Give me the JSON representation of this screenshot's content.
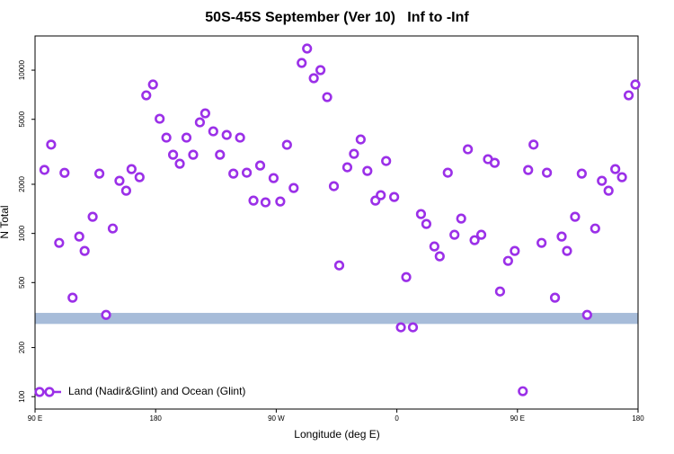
{
  "chart_data": {
    "type": "scatter",
    "title": "50S-45S September (Ver 10)   Inf to -Inf",
    "x_label": "Longitude (deg E)",
    "y_label": "N Total",
    "log_y": true,
    "xlim": [
      90,
      540
    ],
    "ylim": [
      84,
      16200
    ],
    "xticks": [
      {
        "value": 90,
        "label": "90 E"
      },
      {
        "value": 180,
        "label": "180"
      },
      {
        "value": 270,
        "label": "90 W"
      },
      {
        "value": 360,
        "label": "0"
      },
      {
        "value": 450,
        "label": "90 E"
      },
      {
        "value": 540,
        "label": "180"
      }
    ],
    "yticks": [
      100,
      200,
      500,
      1000,
      2000,
      5000,
      10000
    ],
    "band": [
      279,
      326
    ],
    "band_color": "#a7bcd9",
    "legend": "bottom-left",
    "series": [
      {
        "name": "Land (Nadir&Glint) and Ocean (Glint)",
        "color": "#9b30e8",
        "x": [
          97,
          102,
          108,
          112,
          118,
          123,
          127,
          133,
          138,
          143,
          148,
          153,
          158,
          162,
          168,
          173,
          178,
          183,
          188,
          193,
          198,
          203,
          208,
          213,
          217,
          223,
          228,
          233,
          238,
          243,
          248,
          253,
          258,
          262,
          268,
          273,
          278,
          283,
          289,
          293,
          298,
          303,
          308,
          313,
          317,
          323,
          328,
          333,
          338,
          344,
          348,
          352,
          358,
          363,
          367,
          372,
          378,
          382,
          388,
          392,
          398,
          403,
          408,
          413,
          418,
          423,
          428,
          433,
          437,
          443,
          448,
          454,
          458,
          462,
          468,
          472,
          478,
          483,
          487,
          493,
          498,
          502,
          508,
          513,
          518,
          523,
          528,
          533,
          538
        ],
        "values": [
          2450,
          3500,
          875,
          2350,
          404,
          957,
          781,
          1265,
          2325,
          317,
          1072,
          2100,
          1827,
          2477,
          2210,
          7012,
          8165,
          5040,
          3862,
          3034,
          2673,
          3862,
          3034,
          4792,
          5440,
          4221,
          3034,
          4012,
          2325,
          3862,
          2355,
          1589,
          2606,
          1550,
          2182,
          1569,
          3490,
          1898,
          11070,
          13560,
          8925,
          10005,
          6836,
          1947,
          637,
          2541,
          3073,
          3765,
          2415,
          1589,
          1715,
          2777,
          1672,
          266,
          540,
          266,
          1314,
          1143,
          832,
          724,
          2355,
          981,
          1233,
          3275,
          909,
          981,
          2849,
          2707,
          441,
          679,
          781,
          108,
          2446,
          3500,
          875,
          2355,
          404,
          957,
          781,
          1265,
          2325,
          317,
          1072,
          2100,
          1827,
          2477,
          2210,
          7012,
          8165
        ]
      }
    ]
  }
}
